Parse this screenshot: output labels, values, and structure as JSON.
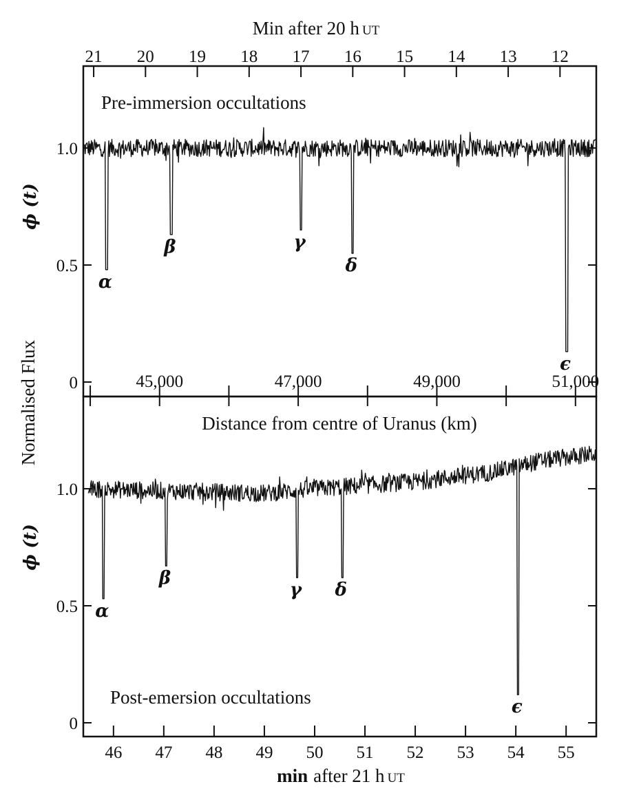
{
  "chart_data": [
    {
      "type": "line",
      "panel": "top",
      "annotation": "Pre-immersion occultations",
      "top_axis": {
        "label": "Min after 20 h",
        "label_ut": "UT",
        "reversed": true,
        "range": [
          21.2,
          11.3
        ],
        "ticks": [
          21,
          20,
          19,
          18,
          17,
          16,
          15,
          14,
          13,
          12
        ],
        "tick_labels": [
          "21",
          "20",
          "19",
          "18",
          "17",
          "16",
          "15",
          "14",
          "13",
          "12"
        ]
      },
      "bottom_axis": {
        "label": "Distance from centre of Uranus (km)",
        "range": [
          43900,
          51300
        ],
        "ticks": [
          44000,
          45000,
          46000,
          47000,
          48000,
          49000,
          50000,
          51000
        ],
        "tick_labels": [
          "45,000",
          "47,000",
          "49,000",
          "51,000"
        ],
        "labeled_ticks": [
          45000,
          47000,
          49000,
          51000
        ]
      },
      "ylabel": "ϕ (t)",
      "ylim": [
        -0.05,
        1.3
      ],
      "yticks": [
        0,
        0.5,
        1.0
      ],
      "ytick_labels": [
        "0",
        "0.5",
        "1.0"
      ],
      "baseline": [
        [
          21.2,
          1.0
        ],
        [
          11.3,
          1.0
        ]
      ],
      "dips": [
        {
          "label": "α",
          "x": 20.75,
          "min": 0.48
        },
        {
          "label": "β",
          "x": 19.5,
          "min": 0.63
        },
        {
          "label": "γ",
          "x": 17.0,
          "min": 0.65
        },
        {
          "label": "δ",
          "x": 16.0,
          "min": 0.55
        },
        {
          "label": "ϵ",
          "x": 11.87,
          "min": 0.13
        }
      ]
    },
    {
      "type": "line",
      "panel": "bottom",
      "annotation": "Post-emersion occultations",
      "xlabel": "min  after 21 h",
      "xlabel_ut": "UT",
      "xlim": [
        45.4,
        55.6
      ],
      "xticks": [
        46,
        47,
        48,
        49,
        50,
        51,
        52,
        53,
        54,
        55
      ],
      "xtick_labels": [
        "46",
        "47",
        "48",
        "49",
        "50",
        "51",
        "52",
        "53",
        "54",
        "55"
      ],
      "ylabel": "ϕ (t)",
      "ylim": [
        -0.05,
        1.35
      ],
      "yticks": [
        0,
        0.5,
        1.0
      ],
      "ytick_labels": [
        "0",
        "0.5",
        "1.0"
      ],
      "baseline": [
        [
          45.4,
          1.0
        ],
        [
          49.0,
          0.98
        ],
        [
          50.0,
          1.0
        ],
        [
          52.0,
          1.03
        ],
        [
          53.5,
          1.07
        ],
        [
          54.5,
          1.12
        ],
        [
          55.6,
          1.15
        ]
      ],
      "dips": [
        {
          "label": "α",
          "x": 45.8,
          "min": 0.53
        },
        {
          "label": "β",
          "x": 47.05,
          "min": 0.67
        },
        {
          "label": "γ",
          "x": 49.65,
          "min": 0.62
        },
        {
          "label": "δ",
          "x": 50.55,
          "min": 0.62
        },
        {
          "label": "ϵ",
          "x": 54.05,
          "min": 0.12
        }
      ]
    }
  ],
  "shared_ylabel": "Normalised Flux"
}
